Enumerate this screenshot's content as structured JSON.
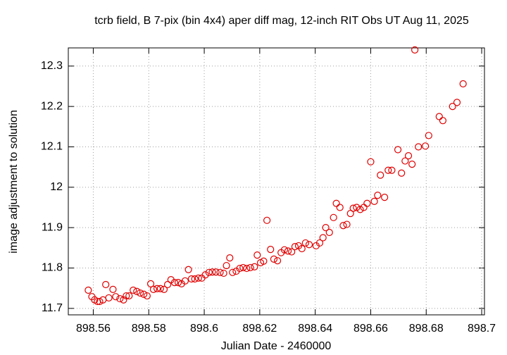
{
  "chart_data": {
    "type": "scatter",
    "title": "tcrb field, B 7-pix (bin 4x4) aper diff mag,  12-inch RIT Obs UT Aug 11, 2025",
    "xlabel": "Julian Date - 2460000",
    "ylabel": "image adjustment to solution",
    "color": "#e00000",
    "grid": true,
    "xlim": [
      898.551,
      898.701
    ],
    "ylim": [
      11.684,
      12.345
    ],
    "xticks": [
      898.56,
      898.58,
      898.6,
      898.62,
      898.64,
      898.66,
      898.68,
      898.7
    ],
    "yticks": [
      11.7,
      11.8,
      11.9,
      12,
      12.1,
      12.2,
      12.3
    ],
    "x": [
      898.5582,
      898.5595,
      898.5605,
      898.5615,
      898.5623,
      898.5635,
      898.5645,
      898.5656,
      898.5671,
      898.5681,
      898.5696,
      898.5709,
      898.5719,
      898.5729,
      898.5744,
      898.5757,
      898.5769,
      898.5782,
      898.5794,
      898.5807,
      898.5817,
      898.583,
      898.5842,
      898.5855,
      898.5868,
      898.588,
      898.5893,
      898.5906,
      898.5918,
      898.5931,
      898.5943,
      898.5954,
      898.5966,
      898.5979,
      898.5991,
      898.6004,
      898.6017,
      898.6029,
      898.6042,
      898.6057,
      898.607,
      898.608,
      898.6092,
      898.6102,
      898.6115,
      898.6128,
      898.614,
      898.6153,
      898.6166,
      898.6181,
      898.6191,
      898.6203,
      898.6214,
      898.6226,
      898.6239,
      898.6251,
      898.6264,
      898.6277,
      898.6289,
      898.6302,
      898.6315,
      898.6327,
      898.634,
      898.6352,
      898.6365,
      898.6378,
      898.6403,
      898.6416,
      898.6428,
      898.6438,
      898.6451,
      898.6466,
      898.6476,
      898.6489,
      898.6501,
      898.6514,
      898.6527,
      898.6537,
      898.6549,
      898.6562,
      898.6575,
      898.6587,
      898.66,
      898.6613,
      898.6625,
      898.6635,
      898.665,
      898.6663,
      898.6676,
      898.6698,
      898.6711,
      898.6724,
      898.6736,
      898.6749,
      898.6759,
      898.6772,
      898.6797,
      898.6809,
      898.6847,
      898.686,
      898.6895,
      898.6911,
      898.6933
    ],
    "values": [
      11.745,
      11.729,
      11.721,
      11.717,
      11.717,
      11.721,
      11.759,
      11.726,
      11.747,
      11.729,
      11.724,
      11.721,
      11.731,
      11.731,
      11.745,
      11.742,
      11.738,
      11.735,
      11.731,
      11.761,
      11.747,
      11.749,
      11.749,
      11.747,
      11.759,
      11.771,
      11.764,
      11.764,
      11.761,
      11.768,
      11.796,
      11.773,
      11.773,
      11.775,
      11.775,
      11.783,
      11.789,
      11.79,
      11.79,
      11.789,
      11.787,
      11.806,
      11.825,
      11.789,
      11.792,
      11.799,
      11.801,
      11.799,
      11.801,
      11.803,
      11.832,
      11.813,
      11.817,
      11.918,
      11.846,
      11.822,
      11.818,
      11.838,
      11.845,
      11.842,
      11.84,
      11.853,
      11.855,
      11.848,
      11.862,
      11.858,
      11.855,
      11.862,
      11.875,
      11.9,
      11.888,
      11.925,
      11.96,
      11.95,
      11.905,
      11.908,
      11.935,
      11.948,
      11.95,
      11.945,
      11.95,
      11.96,
      12.063,
      11.965,
      11.98,
      12.03,
      11.975,
      12.042,
      12.042,
      12.093,
      12.035,
      12.065,
      12.078,
      12.057,
      12.34,
      12.1,
      12.102,
      12.128,
      12.175,
      12.165,
      12.2,
      12.21,
      12.256
    ]
  }
}
